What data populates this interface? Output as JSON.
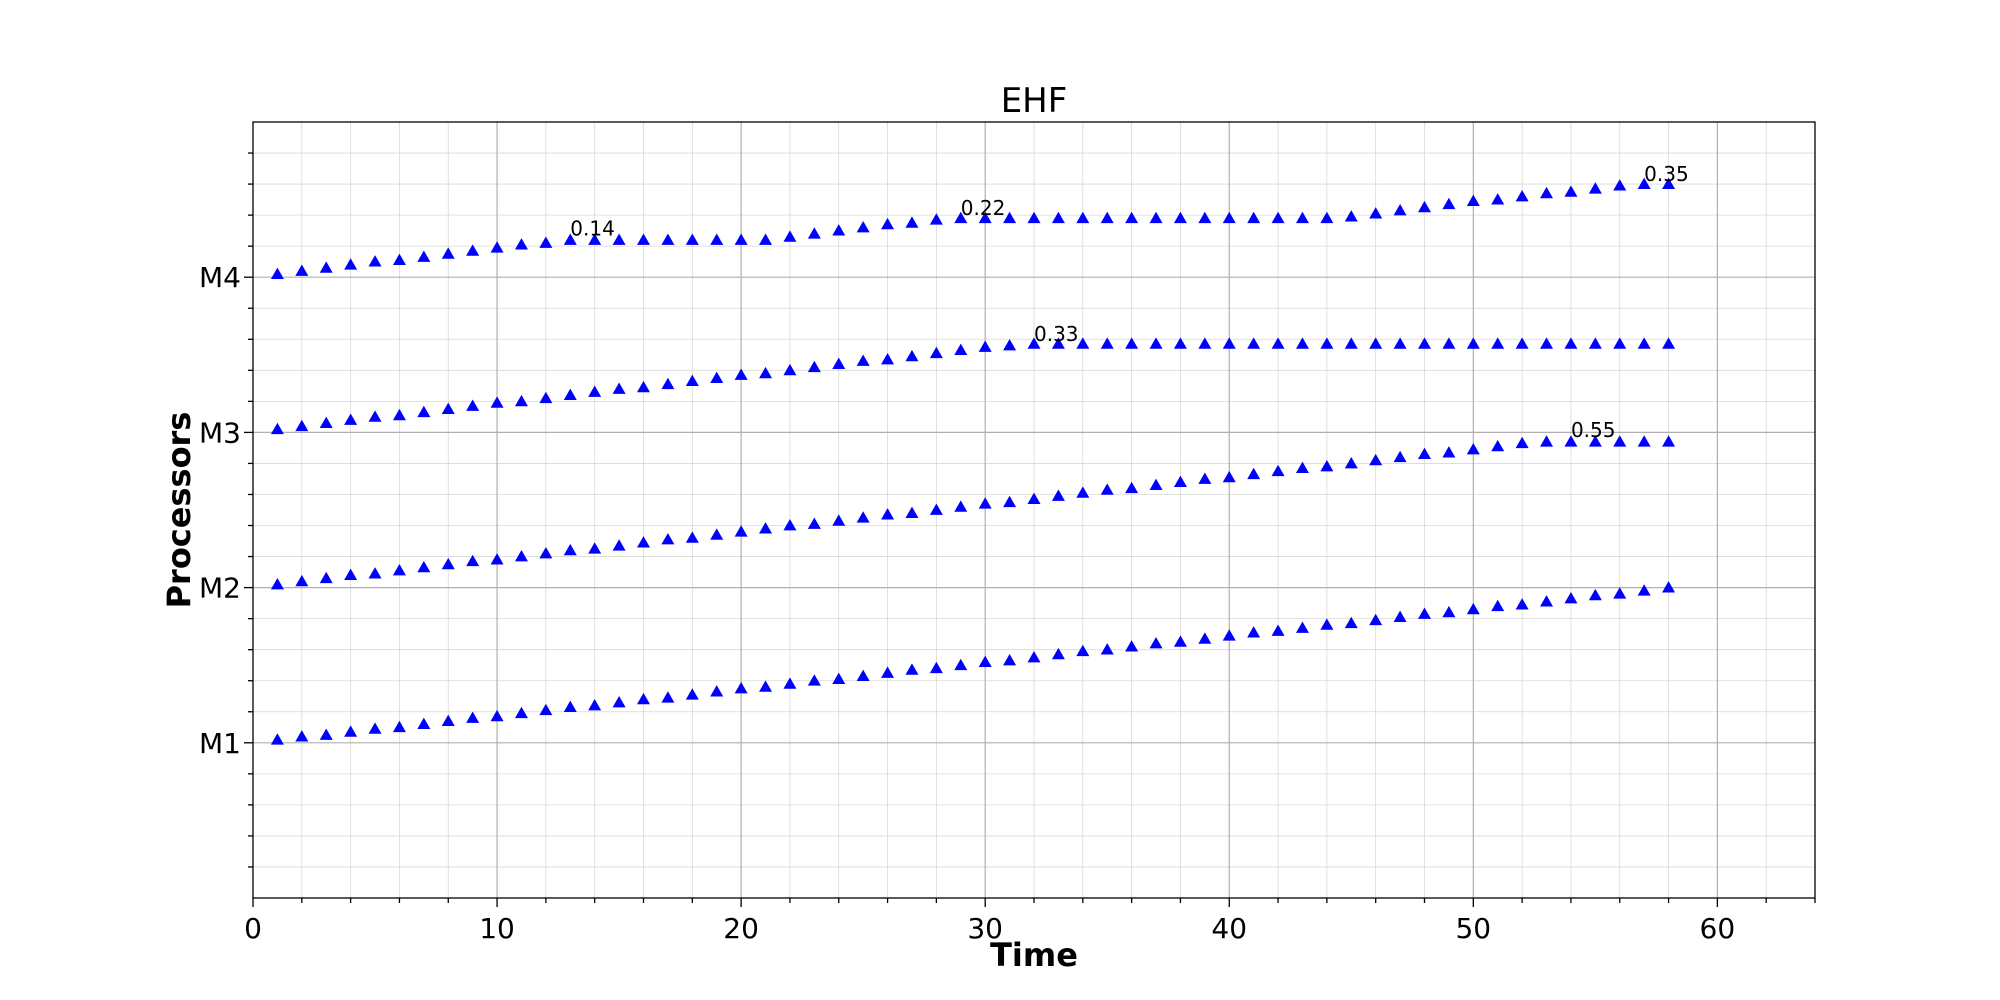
{
  "chart_data": {
    "type": "scatter",
    "title": "EHF",
    "xlabel": "Time",
    "ylabel": "Processors",
    "xlim": [
      0,
      64
    ],
    "ylim": [
      0,
      5
    ],
    "x_ticks": [
      0,
      10,
      20,
      30,
      40,
      50,
      60
    ],
    "y_ticks": [
      {
        "value": 1,
        "label": "M1"
      },
      {
        "value": 2,
        "label": "M2"
      },
      {
        "value": 3,
        "label": "M3"
      },
      {
        "value": 4,
        "label": "M4"
      }
    ],
    "grid": true,
    "marker": "triangle-up",
    "marker_color": "#0000ff",
    "series": [
      {
        "processor": "M1",
        "x": [
          1,
          2,
          3,
          4,
          5,
          6,
          7,
          8,
          9,
          10,
          11,
          12,
          13,
          14,
          15,
          16,
          17,
          18,
          19,
          20,
          21,
          22,
          23,
          24,
          25,
          26,
          27,
          28,
          29,
          30,
          31,
          32,
          33,
          34,
          35,
          36,
          37,
          38,
          39,
          40,
          41,
          42,
          43,
          44,
          45,
          46,
          47,
          48,
          49,
          50,
          51,
          52,
          53,
          54,
          55,
          56,
          57,
          58
        ],
        "y": [
          1.02,
          1.04,
          1.05,
          1.07,
          1.09,
          1.1,
          1.12,
          1.14,
          1.16,
          1.17,
          1.19,
          1.21,
          1.23,
          1.24,
          1.26,
          1.28,
          1.29,
          1.31,
          1.33,
          1.35,
          1.36,
          1.38,
          1.4,
          1.41,
          1.43,
          1.45,
          1.47,
          1.48,
          1.5,
          1.52,
          1.53,
          1.55,
          1.57,
          1.59,
          1.6,
          1.62,
          1.64,
          1.65,
          1.67,
          1.69,
          1.71,
          1.72,
          1.74,
          1.76,
          1.77,
          1.79,
          1.81,
          1.83,
          1.84,
          1.86,
          1.88,
          1.89,
          1.91,
          1.93,
          1.95,
          1.96,
          1.98,
          2.0
        ]
      },
      {
        "processor": "M2",
        "x": [
          1,
          2,
          3,
          4,
          5,
          6,
          7,
          8,
          9,
          10,
          11,
          12,
          13,
          14,
          15,
          16,
          17,
          18,
          19,
          20,
          21,
          22,
          23,
          24,
          25,
          26,
          27,
          28,
          29,
          30,
          31,
          32,
          33,
          34,
          35,
          36,
          37,
          38,
          39,
          40,
          41,
          42,
          43,
          44,
          45,
          46,
          47,
          48,
          49,
          50,
          51,
          52,
          53,
          54,
          55,
          56,
          57,
          58
        ],
        "y": [
          2.02,
          2.04,
          2.06,
          2.08,
          2.09,
          2.11,
          2.13,
          2.15,
          2.17,
          2.18,
          2.2,
          2.22,
          2.24,
          2.25,
          2.27,
          2.29,
          2.31,
          2.32,
          2.34,
          2.36,
          2.38,
          2.4,
          2.41,
          2.43,
          2.45,
          2.47,
          2.48,
          2.5,
          2.52,
          2.54,
          2.55,
          2.57,
          2.59,
          2.61,
          2.63,
          2.64,
          2.66,
          2.68,
          2.7,
          2.71,
          2.73,
          2.75,
          2.77,
          2.78,
          2.8,
          2.82,
          2.84,
          2.86,
          2.87,
          2.89,
          2.91,
          2.93,
          2.94,
          2.94,
          2.94,
          2.94,
          2.94,
          2.94
        ]
      },
      {
        "processor": "M3",
        "x": [
          1,
          2,
          3,
          4,
          5,
          6,
          7,
          8,
          9,
          10,
          11,
          12,
          13,
          14,
          15,
          16,
          17,
          18,
          19,
          20,
          21,
          22,
          23,
          24,
          25,
          26,
          27,
          28,
          29,
          30,
          31,
          32,
          33,
          34,
          35,
          36,
          37,
          38,
          39,
          40,
          41,
          42,
          43,
          44,
          45,
          46,
          47,
          48,
          49,
          50,
          51,
          52,
          53,
          54,
          55,
          56,
          57,
          58
        ],
        "y": [
          3.02,
          3.04,
          3.06,
          3.08,
          3.1,
          3.11,
          3.13,
          3.15,
          3.17,
          3.19,
          3.2,
          3.22,
          3.24,
          3.26,
          3.28,
          3.29,
          3.31,
          3.33,
          3.35,
          3.37,
          3.38,
          3.4,
          3.42,
          3.44,
          3.46,
          3.47,
          3.49,
          3.51,
          3.53,
          3.55,
          3.56,
          3.57,
          3.57,
          3.57,
          3.57,
          3.57,
          3.57,
          3.57,
          3.57,
          3.57,
          3.57,
          3.57,
          3.57,
          3.57,
          3.57,
          3.57,
          3.57,
          3.57,
          3.57,
          3.57,
          3.57,
          3.57,
          3.57,
          3.57,
          3.57,
          3.57,
          3.57,
          3.57
        ]
      },
      {
        "processor": "M4",
        "x": [
          1,
          2,
          3,
          4,
          5,
          6,
          7,
          8,
          9,
          10,
          11,
          12,
          13,
          14,
          15,
          16,
          17,
          18,
          19,
          20,
          21,
          22,
          23,
          24,
          25,
          26,
          27,
          28,
          29,
          30,
          31,
          32,
          33,
          34,
          35,
          36,
          37,
          38,
          39,
          40,
          41,
          42,
          43,
          44,
          45,
          46,
          47,
          48,
          49,
          50,
          51,
          52,
          53,
          54,
          55,
          56,
          57,
          58
        ],
        "y": [
          4.02,
          4.04,
          4.06,
          4.08,
          4.1,
          4.11,
          4.13,
          4.15,
          4.17,
          4.19,
          4.21,
          4.22,
          4.24,
          4.24,
          4.24,
          4.24,
          4.24,
          4.24,
          4.24,
          4.24,
          4.24,
          4.26,
          4.28,
          4.3,
          4.32,
          4.34,
          4.35,
          4.37,
          4.38,
          4.38,
          4.38,
          4.38,
          4.38,
          4.38,
          4.38,
          4.38,
          4.38,
          4.38,
          4.38,
          4.38,
          4.38,
          4.38,
          4.38,
          4.38,
          4.39,
          4.41,
          4.43,
          4.45,
          4.47,
          4.49,
          4.5,
          4.52,
          4.54,
          4.55,
          4.57,
          4.59,
          4.6,
          4.6
        ]
      }
    ],
    "annotations": [
      {
        "text": "0.14",
        "x": 13,
        "y": 4.27
      },
      {
        "text": "0.22",
        "x": 29,
        "y": 4.4
      },
      {
        "text": "0.33",
        "x": 32,
        "y": 3.59
      },
      {
        "text": "0.55",
        "x": 54,
        "y": 2.97
      },
      {
        "text": "0.35",
        "x": 57,
        "y": 4.62
      }
    ]
  }
}
